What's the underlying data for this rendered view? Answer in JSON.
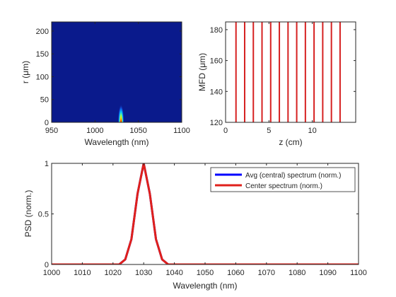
{
  "colors": {
    "background": "#ffffff",
    "axis": "#262626",
    "heatmap_background": "#0a1a8c",
    "avg_series": "#0000ff",
    "center_series": "#e0201b",
    "stripe": "#d62020"
  },
  "chart_data": [
    {
      "type": "heatmap",
      "title": "",
      "xlabel": "Wavelength (nm)",
      "ylabel": "r (μm)",
      "xlim": [
        950,
        1100
      ],
      "ylim": [
        0,
        220
      ],
      "xticks": [
        "950",
        "1000",
        "1050",
        "1100"
      ],
      "yticks": [
        "0",
        "50",
        "100",
        "150",
        "200"
      ],
      "xtick_values": [
        950,
        1000,
        1050,
        1100
      ],
      "ytick_values": [
        0,
        50,
        100,
        150,
        200
      ],
      "grid": false,
      "colormap": "jet",
      "peak": {
        "x": 1030,
        "y": 0,
        "x_width": 3.5,
        "y_width": 40
      }
    },
    {
      "type": "line",
      "title": "",
      "xlabel": "z (cm)",
      "ylabel": "MFD (μm)",
      "xlim": [
        0,
        15
      ],
      "ylim": [
        120,
        185
      ],
      "xticks": [
        "0",
        "5",
        "10"
      ],
      "yticks": [
        "120",
        "140",
        "160",
        "180"
      ],
      "xtick_values": [
        0,
        5,
        10
      ],
      "ytick_values": [
        120,
        140,
        160,
        180
      ],
      "grid": false,
      "vertical_lines_x": [
        1.2,
        2.2,
        3.2,
        4.2,
        5.2,
        6.2,
        7.2,
        8.2,
        9.2,
        10.2,
        11.2,
        12.2,
        13.2
      ]
    },
    {
      "type": "line",
      "title": "",
      "xlabel": "Wavelength (nm)",
      "ylabel": "PSD (norm.)",
      "xlim": [
        1000,
        1100
      ],
      "ylim": [
        0,
        1
      ],
      "xticks": [
        "1000",
        "1010",
        "1020",
        "1030",
        "1040",
        "1050",
        "1060",
        "1070",
        "1080",
        "1090",
        "1100"
      ],
      "yticks": [
        "0",
        "0.5",
        "1"
      ],
      "xtick_values": [
        1000,
        1010,
        1020,
        1030,
        1040,
        1050,
        1060,
        1070,
        1080,
        1090,
        1100
      ],
      "ytick_values": [
        0,
        0.5,
        1
      ],
      "grid": false,
      "legend": "top-right",
      "x": [
        1000,
        1022,
        1024,
        1026,
        1028,
        1030,
        1032,
        1034,
        1036,
        1038,
        1100
      ],
      "series": [
        {
          "name": "Avg (central) spectrum (norm.)",
          "values": [
            0,
            0,
            0.05,
            0.25,
            0.7,
            1.0,
            0.7,
            0.25,
            0.05,
            0,
            0
          ]
        },
        {
          "name": "Center spectrum (norm.)",
          "values": [
            0,
            0,
            0.05,
            0.25,
            0.7,
            1.0,
            0.7,
            0.25,
            0.05,
            0,
            0
          ]
        }
      ]
    }
  ]
}
